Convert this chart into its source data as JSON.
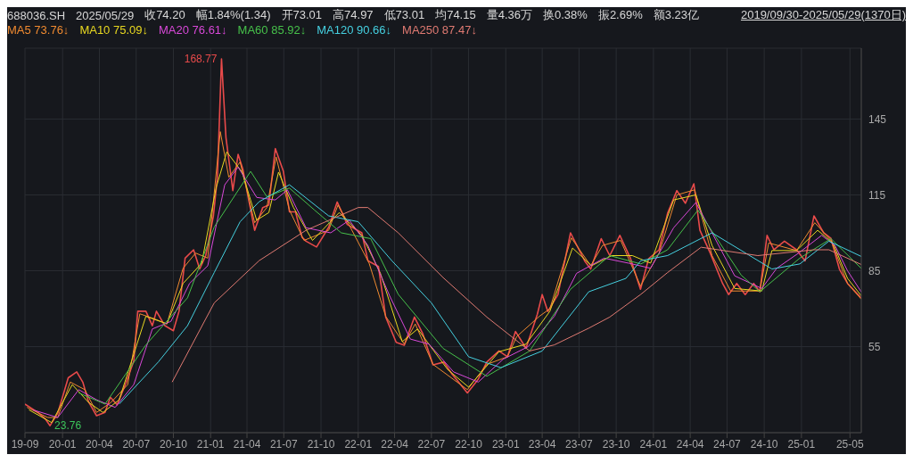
{
  "chart_data": {
    "type": "line",
    "annotations": [
      "688036.SH",
      "2025/05/29",
      "收74.20",
      "幅1.84%(1.34)",
      "开73.01",
      "高74.97",
      "低73.01",
      "均74.15",
      "量4.36万",
      "换0.38%",
      "振2.69%",
      "额3.23亿",
      "2019/09/30-2025/05/29(1370日)",
      {
        "text": "168.77",
        "x": "2021-01-28",
        "y": 168.77
      },
      {
        "text": "23.76",
        "x": "2019-12-01",
        "y": 23.76
      }
    ],
    "xlim": [
      "2019-09-30",
      "2025-05-29"
    ],
    "xticks": [
      {
        "value": "2019-09-30",
        "label": "19-09"
      },
      {
        "value": "2020-01",
        "label": "20-01"
      },
      {
        "value": "2020-04",
        "label": "20-04"
      },
      {
        "value": "2020-07",
        "label": "20-07"
      },
      {
        "value": "2020-10",
        "label": "20-10"
      },
      {
        "value": "2021-01",
        "label": "21-01"
      },
      {
        "value": "2021-04",
        "label": "21-04"
      },
      {
        "value": "2021-07",
        "label": "21-07"
      },
      {
        "value": "2021-10",
        "label": "21-10"
      },
      {
        "value": "2022-01",
        "label": "22-01"
      },
      {
        "value": "2022-04",
        "label": "22-04"
      },
      {
        "value": "2022-07",
        "label": "22-07"
      },
      {
        "value": "2022-10",
        "label": "22-10"
      },
      {
        "value": "2023-01",
        "label": "23-01"
      },
      {
        "value": "2023-04",
        "label": "23-04"
      },
      {
        "value": "2023-07",
        "label": "23-07"
      },
      {
        "value": "2023-10",
        "label": "23-10"
      },
      {
        "value": "2024-01",
        "label": "24-01"
      },
      {
        "value": "2024-04",
        "label": "24-04"
      },
      {
        "value": "2024-07",
        "label": "24-07"
      },
      {
        "value": "2024-10",
        "label": "24-10"
      },
      {
        "value": "2025-01",
        "label": "25-01"
      },
      {
        "value": "2025-05",
        "label": "25-05"
      }
    ],
    "ylim": [
      21,
      173
    ],
    "yticks": [
      55,
      85,
      115,
      145
    ],
    "grid": true,
    "legend": "top left",
    "marker": "none",
    "line_style": "solid",
    "series": [
      {
        "color": "#e84a4a",
        "x": [
          "2019-09-30",
          "2019-11-01",
          "2019-11-20",
          "2019-12-01",
          "2019-12-20",
          "2020-01-15",
          "2020-02-05",
          "2020-02-20",
          "2020-03-05",
          "2020-03-25",
          "2020-04-15",
          "2020-04-28",
          "2020-05-15",
          "2020-06-05",
          "2020-06-25",
          "2020-07-05",
          "2020-07-25",
          "2020-08-10",
          "2020-08-20",
          "2020-09-10",
          "2020-10-01",
          "2020-10-15",
          "2020-10-30",
          "2020-11-20",
          "2020-12-05",
          "2020-12-20",
          "2021-01-08",
          "2021-01-18",
          "2021-01-28",
          "2021-02-08",
          "2021-02-25",
          "2021-03-10",
          "2021-03-22",
          "2021-04-05",
          "2021-04-20",
          "2021-05-10",
          "2021-05-25",
          "2021-06-10",
          "2021-06-30",
          "2021-07-15",
          "2021-07-30",
          "2021-08-15",
          "2021-08-25",
          "2021-09-20",
          "2021-10-20",
          "2021-11-10",
          "2021-12-05",
          "2022-01-10",
          "2022-01-25",
          "2022-02-20",
          "2022-03-10",
          "2022-04-05",
          "2022-04-25",
          "2022-05-20",
          "2022-06-10",
          "2022-07-05",
          "2022-08-01",
          "2022-08-20",
          "2022-09-28",
          "2022-10-25",
          "2022-11-15",
          "2022-12-15",
          "2023-01-05",
          "2023-01-25",
          "2023-02-20",
          "2023-03-20",
          "2023-04-01",
          "2023-04-15",
          "2023-05-10",
          "2023-06-10",
          "2023-07-15",
          "2023-07-30",
          "2023-08-25",
          "2023-09-15",
          "2023-10-10",
          "2023-11-05",
          "2023-11-30",
          "2023-12-20",
          "2024-01-15",
          "2024-02-05",
          "2024-02-28",
          "2024-03-20",
          "2024-04-10",
          "2024-04-25",
          "2024-05-20",
          "2024-06-20",
          "2024-07-05",
          "2024-07-25",
          "2024-08-15",
          "2024-09-05",
          "2024-09-20",
          "2024-10-08",
          "2024-10-25",
          "2024-11-20",
          "2024-12-20",
          "2025-01-10",
          "2025-02-01",
          "2025-02-25",
          "2025-03-15",
          "2025-04-05",
          "2025-04-25",
          "2025-05-29"
        ],
        "values": [
          32.3,
          29,
          26.3,
          23.76,
          28.7,
          42.7,
          45,
          41,
          33.3,
          27.7,
          29,
          35,
          32,
          40.3,
          49.3,
          69,
          69,
          63.3,
          69,
          63.3,
          61.3,
          69,
          90,
          93.3,
          85.7,
          91,
          106.7,
          122.3,
          168.77,
          137.7,
          116.7,
          131,
          125,
          113.3,
          101,
          110,
          111,
          133.3,
          124.3,
          108.3,
          108.3,
          98.3,
          96.7,
          94.4,
          102.2,
          112.2,
          103.3,
          100,
          89,
          86.7,
          66.7,
          56.7,
          55.6,
          66.7,
          60,
          47.8,
          48.9,
          44.4,
          36.7,
          42.2,
          48.9,
          53.3,
          51,
          61,
          54.4,
          67.8,
          75.6,
          68.9,
          75.6,
          100,
          88.9,
          85.7,
          97.7,
          91,
          99,
          90,
          77.7,
          89.7,
          93.3,
          107.7,
          116.7,
          111.7,
          119.4,
          101,
          92.2,
          80,
          75.6,
          80,
          75.6,
          80,
          76.7,
          99,
          93.3,
          96.7,
          93.3,
          88.9,
          106.7,
          100,
          97.8,
          85.6,
          80,
          74.2
        ]
      },
      {
        "name": "MA5 73.76↓",
        "color": "#f08a30",
        "x": [
          "2019-10-05",
          "2019-11-25",
          "2019-12-20",
          "2020-01-20",
          "2020-02-25",
          "2020-03-25",
          "2020-04-30",
          "2020-06-10",
          "2020-07-10",
          "2020-08-15",
          "2020-09-15",
          "2020-10-25",
          "2020-11-25",
          "2020-12-25",
          "2021-01-25",
          "2021-02-15",
          "2021-03-15",
          "2021-04-20",
          "2021-05-20",
          "2021-06-12",
          "2021-07-15",
          "2021-08-20",
          "2021-10-20",
          "2021-11-12",
          "2021-12-10",
          "2022-01-28",
          "2022-03-10",
          "2022-04-25",
          "2022-05-22",
          "2022-07-05",
          "2022-09-28",
          "2022-11-15",
          "2023-01-05",
          "2023-01-28",
          "2023-03-25",
          "2023-04-20",
          "2023-06-12",
          "2023-07-30",
          "2023-08-28",
          "2023-10-12",
          "2023-11-30",
          "2024-01-15",
          "2024-02-28",
          "2024-04-12",
          "2024-05-25",
          "2024-07-10",
          "2024-09-20",
          "2024-10-12",
          "2024-12-20",
          "2025-02-03",
          "2025-03-15",
          "2025-04-25",
          "2025-05-29"
        ],
        "values": [
          31,
          27,
          27,
          41,
          38,
          29,
          33,
          40,
          68,
          66,
          64,
          86,
          92,
          90,
          140,
          122,
          128,
          104,
          110,
          130,
          109,
          97,
          101,
          111,
          103,
          88,
          67,
          56,
          64,
          48,
          38,
          48,
          51,
          59,
          67,
          70,
          98,
          87,
          95,
          97,
          79,
          92,
          115,
          117,
          91,
          77,
          77,
          96,
          93,
          104,
          97,
          80,
          73.76
        ]
      },
      {
        "name": "MA10 75.09↓",
        "color": "#e8d820",
        "x": [
          "2019-10-10",
          "2019-12-05",
          "2020-01-25",
          "2020-03-05",
          "2020-04-10",
          "2020-05-20",
          "2020-06-25",
          "2020-07-25",
          "2020-09-15",
          "2020-10-25",
          "2020-12-10",
          "2021-01-15",
          "2021-02-10",
          "2021-03-20",
          "2021-04-25",
          "2021-05-25",
          "2021-06-18",
          "2021-07-25",
          "2021-09-10",
          "2021-11-15",
          "2022-01-10",
          "2022-02-25",
          "2022-04-20",
          "2022-05-28",
          "2022-08-10",
          "2022-10-01",
          "2022-12-15",
          "2023-02-20",
          "2023-04-20",
          "2023-06-15",
          "2023-08-01",
          "2023-09-20",
          "2023-11-10",
          "2023-12-25",
          "2024-02-20",
          "2024-04-15",
          "2024-05-25",
          "2024-07-20",
          "2024-09-25",
          "2024-10-20",
          "2024-12-20",
          "2025-02-10",
          "2025-03-20",
          "2025-04-25",
          "2025-05-29"
        ],
        "values": [
          30,
          25,
          40,
          33,
          29,
          34,
          52,
          67,
          64,
          80,
          88,
          118,
          132,
          124,
          105,
          108,
          124,
          110,
          97,
          108,
          99,
          84,
          57,
          62,
          46,
          39,
          53,
          56,
          69,
          94,
          87,
          91,
          91,
          88,
          113,
          115,
          95,
          78,
          77,
          93,
          93,
          101,
          96,
          82,
          75.09
        ]
      },
      {
        "name": "MA20 76.61↓",
        "color": "#d848d8",
        "x": [
          "2019-10-20",
          "2019-12-20",
          "2020-02-10",
          "2020-03-25",
          "2020-05-10",
          "2020-06-25",
          "2020-08-10",
          "2020-09-25",
          "2020-11-10",
          "2020-12-25",
          "2021-02-05",
          "2021-03-10",
          "2021-04-25",
          "2021-06-10",
          "2021-07-10",
          "2021-08-25",
          "2021-10-25",
          "2021-12-10",
          "2022-01-25",
          "2022-03-20",
          "2022-05-10",
          "2022-06-25",
          "2022-08-25",
          "2022-10-25",
          "2022-12-25",
          "2023-02-25",
          "2023-05-01",
          "2023-06-25",
          "2023-09-01",
          "2023-11-01",
          "2023-12-25",
          "2024-02-20",
          "2024-04-15",
          "2024-05-25",
          "2024-07-20",
          "2024-09-25",
          "2024-11-01",
          "2024-12-25",
          "2025-02-20",
          "2025-03-25",
          "2025-04-25",
          "2025-05-29"
        ],
        "values": [
          30,
          27,
          38,
          34,
          31,
          40,
          62,
          65,
          80,
          87,
          119,
          126,
          114,
          113,
          117,
          102,
          100,
          105,
          95,
          75,
          58,
          56,
          45,
          41,
          50,
          55,
          67,
          84,
          90,
          88,
          86,
          102,
          112,
          100,
          83,
          78,
          86,
          92,
          99,
          95,
          85,
          76.61
        ]
      },
      {
        "name": "MA60 85.92↓",
        "color": "#46c04a",
        "x": [
          "2020-02-10",
          "2020-04-15",
          "2020-07-25",
          "2020-11-05",
          "2021-01-10",
          "2021-04-10",
          "2021-05-20",
          "2021-07-15",
          "2021-09-15",
          "2021-11-20",
          "2022-02-01",
          "2022-04-10",
          "2022-07-30",
          "2022-11-15",
          "2023-03-01",
          "2023-06-10",
          "2023-09-15",
          "2023-12-01",
          "2024-02-05",
          "2024-04-20",
          "2024-08-05",
          "2024-09-20",
          "2024-12-28",
          "2025-03-15",
          "2025-05-29"
        ],
        "values": [
          36.7,
          32.3,
          55.7,
          74.3,
          102.3,
          124.3,
          114.3,
          117.7,
          109,
          100,
          97.7,
          75.7,
          54.3,
          43.3,
          53.3,
          77.7,
          91,
          87.7,
          93.3,
          109,
          83.3,
          76.7,
          90,
          97.7,
          85.92
        ]
      },
      {
        "name": "MA120 90.66↓",
        "color": "#45d0e0",
        "x": [
          "2020-05-20",
          "2020-08-25",
          "2020-11-05",
          "2021-01-10",
          "2021-03-15",
          "2021-05-01",
          "2021-07-15",
          "2021-10-20",
          "2022-01-01",
          "2022-03-25",
          "2022-07-01",
          "2022-10-01",
          "2022-12-20",
          "2023-04-01",
          "2023-07-25",
          "2023-10-25",
          "2023-12-01",
          "2024-02-05",
          "2024-05-25",
          "2024-10-20",
          "2024-12-28",
          "2025-03-10",
          "2025-05-29"
        ],
        "values": [
          32.3,
          49,
          63.3,
          84.3,
          104.4,
          112.3,
          119,
          106.7,
          104.4,
          89,
          72.3,
          51,
          46.7,
          53.3,
          76.7,
          82,
          89,
          91,
          100,
          85.7,
          87.7,
          96.7,
          90.66
        ]
      },
      {
        "name": "MA250 87.47↓",
        "color": "#e07a72",
        "x": [
          "2020-09-28",
          "2021-01-10",
          "2021-05-01",
          "2021-08-25",
          "2022-01-01",
          "2022-01-25",
          "2022-04-10",
          "2022-07-30",
          "2022-11-15",
          "2023-03-01",
          "2023-05-01",
          "2023-07-25",
          "2023-09-15",
          "2023-12-01",
          "2024-02-05",
          "2024-04-28",
          "2024-09-15",
          "2025-02-01",
          "2025-03-10",
          "2025-05-29"
        ],
        "values": [
          41,
          72.3,
          89,
          101,
          110,
          110,
          100,
          82.3,
          66.7,
          53.3,
          55.7,
          62.3,
          66.7,
          75.7,
          84.3,
          94.3,
          91,
          93.3,
          93.3,
          87.47
        ]
      }
    ]
  }
}
